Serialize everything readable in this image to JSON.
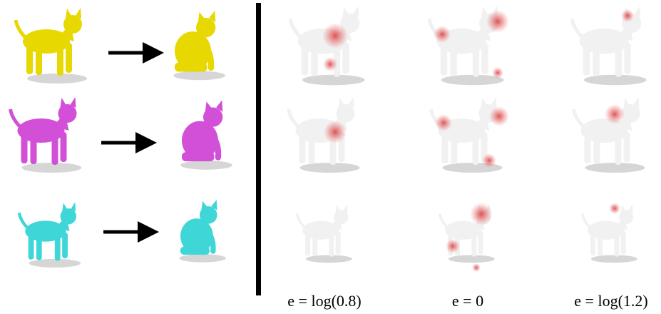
{
  "captions": [
    "e = log(0.8)",
    "e = 0",
    "e = log(1.2)"
  ]
}
